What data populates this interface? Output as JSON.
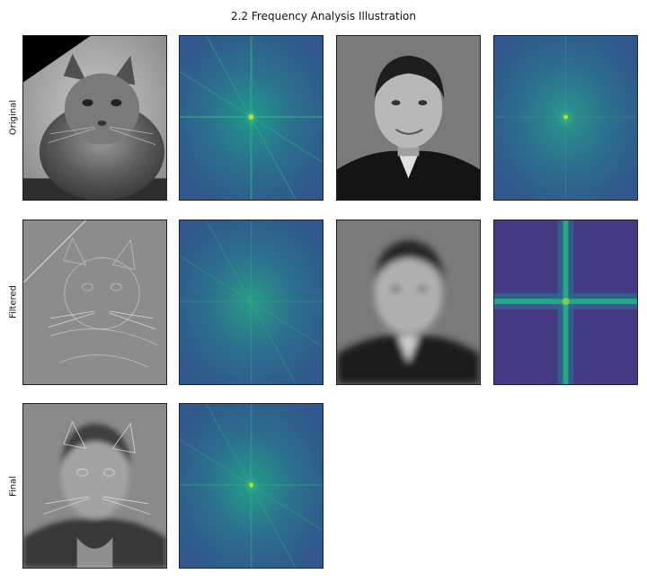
{
  "chart_data": {
    "type": "image-grid",
    "title": "2.2 Frequency Analysis Illustration",
    "rows": [
      {
        "label": "Original",
        "panels": [
          "cat-photo",
          "cat-fft-spectrum",
          "man-photo",
          "man-fft-spectrum"
        ]
      },
      {
        "label": "Filtered",
        "panels": [
          "cat-highpass",
          "cat-highpass-fft-spectrum",
          "man-lowpass",
          "man-lowpass-fft-spectrum"
        ]
      },
      {
        "label": "Final",
        "panels": [
          "hybrid-image",
          "hybrid-fft-spectrum"
        ]
      }
    ],
    "colormap_spectrum": "viridis",
    "colormap_photo": "gray"
  }
}
